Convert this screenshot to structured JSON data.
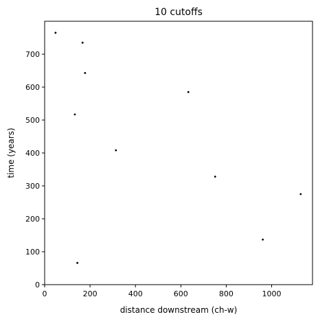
{
  "chart_data": {
    "type": "scatter",
    "title": "10 cutoffs",
    "xlabel": "distance downstream (ch-w)",
    "ylabel": "time (years)",
    "xlim": [
      0,
      1180
    ],
    "ylim": [
      0,
      800
    ],
    "xticks": [
      0,
      200,
      400,
      600,
      800,
      1000
    ],
    "yticks": [
      0,
      100,
      200,
      300,
      400,
      500,
      600,
      700
    ],
    "grid": false,
    "marker_color": "#000000",
    "points": [
      {
        "x": 48,
        "y": 765
      },
      {
        "x": 167,
        "y": 735
      },
      {
        "x": 178,
        "y": 643
      },
      {
        "x": 633,
        "y": 585
      },
      {
        "x": 133,
        "y": 517
      },
      {
        "x": 314,
        "y": 408
      },
      {
        "x": 751,
        "y": 328
      },
      {
        "x": 1128,
        "y": 275
      },
      {
        "x": 961,
        "y": 137
      },
      {
        "x": 144,
        "y": 66
      }
    ]
  }
}
